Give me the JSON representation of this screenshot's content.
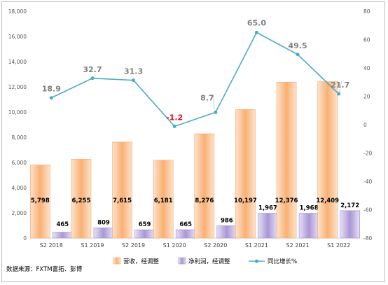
{
  "source_note": "数据来源：FXTM富拓、彭博",
  "colors": {
    "revenue": "#f9b074",
    "net_profit": "#a996d6",
    "yoy": "#4bacc6",
    "negative_label": "#ff0000",
    "line_label": "#7f7f7f"
  },
  "chart_data": {
    "type": "bar",
    "categories": [
      "S2 2018",
      "S1 2019",
      "S2 2019",
      "S1 2020",
      "S2 2020",
      "S1 2021",
      "S2 2021",
      "S1 2022"
    ],
    "series": [
      {
        "name": "营收，经调整",
        "type": "bar",
        "axis": "left",
        "values": [
          5798,
          6255,
          7615,
          6181,
          8276,
          10197,
          12376,
          12409
        ],
        "labels": [
          "5,798",
          "6,255",
          "7,615",
          "6,181",
          "8,276",
          "10,197",
          "12,376",
          "12,409"
        ]
      },
      {
        "name": "净利润，经调整",
        "type": "bar",
        "axis": "left",
        "values": [
          465,
          809,
          659,
          665,
          986,
          1967,
          1968,
          2172
        ],
        "labels": [
          "465",
          "809",
          "659",
          "665",
          "986",
          "1,967",
          "1,968",
          "2,172"
        ]
      },
      {
        "name": "同比增长%",
        "type": "line",
        "axis": "right",
        "values": [
          18.9,
          32.7,
          31.3,
          -1.2,
          8.7,
          65.0,
          49.5,
          21.7
        ],
        "labels": [
          "18.9",
          "32.7",
          "31.3",
          "-1.2",
          "8.7",
          "65.0",
          "49.5",
          "21.7"
        ]
      }
    ],
    "ylim": [
      0,
      18000
    ],
    "y_ticks": [
      "0",
      "2,000",
      "4,000",
      "6,000",
      "8,000",
      "10,000",
      "12,000",
      "14,000",
      "16,000",
      "18,000"
    ],
    "y2lim": [
      -80,
      80
    ],
    "y2_ticks": [
      "-80",
      "-60",
      "-40",
      "-20",
      "0",
      "20",
      "40",
      "60",
      "80"
    ],
    "legend_position": "bottom",
    "grid": false
  }
}
